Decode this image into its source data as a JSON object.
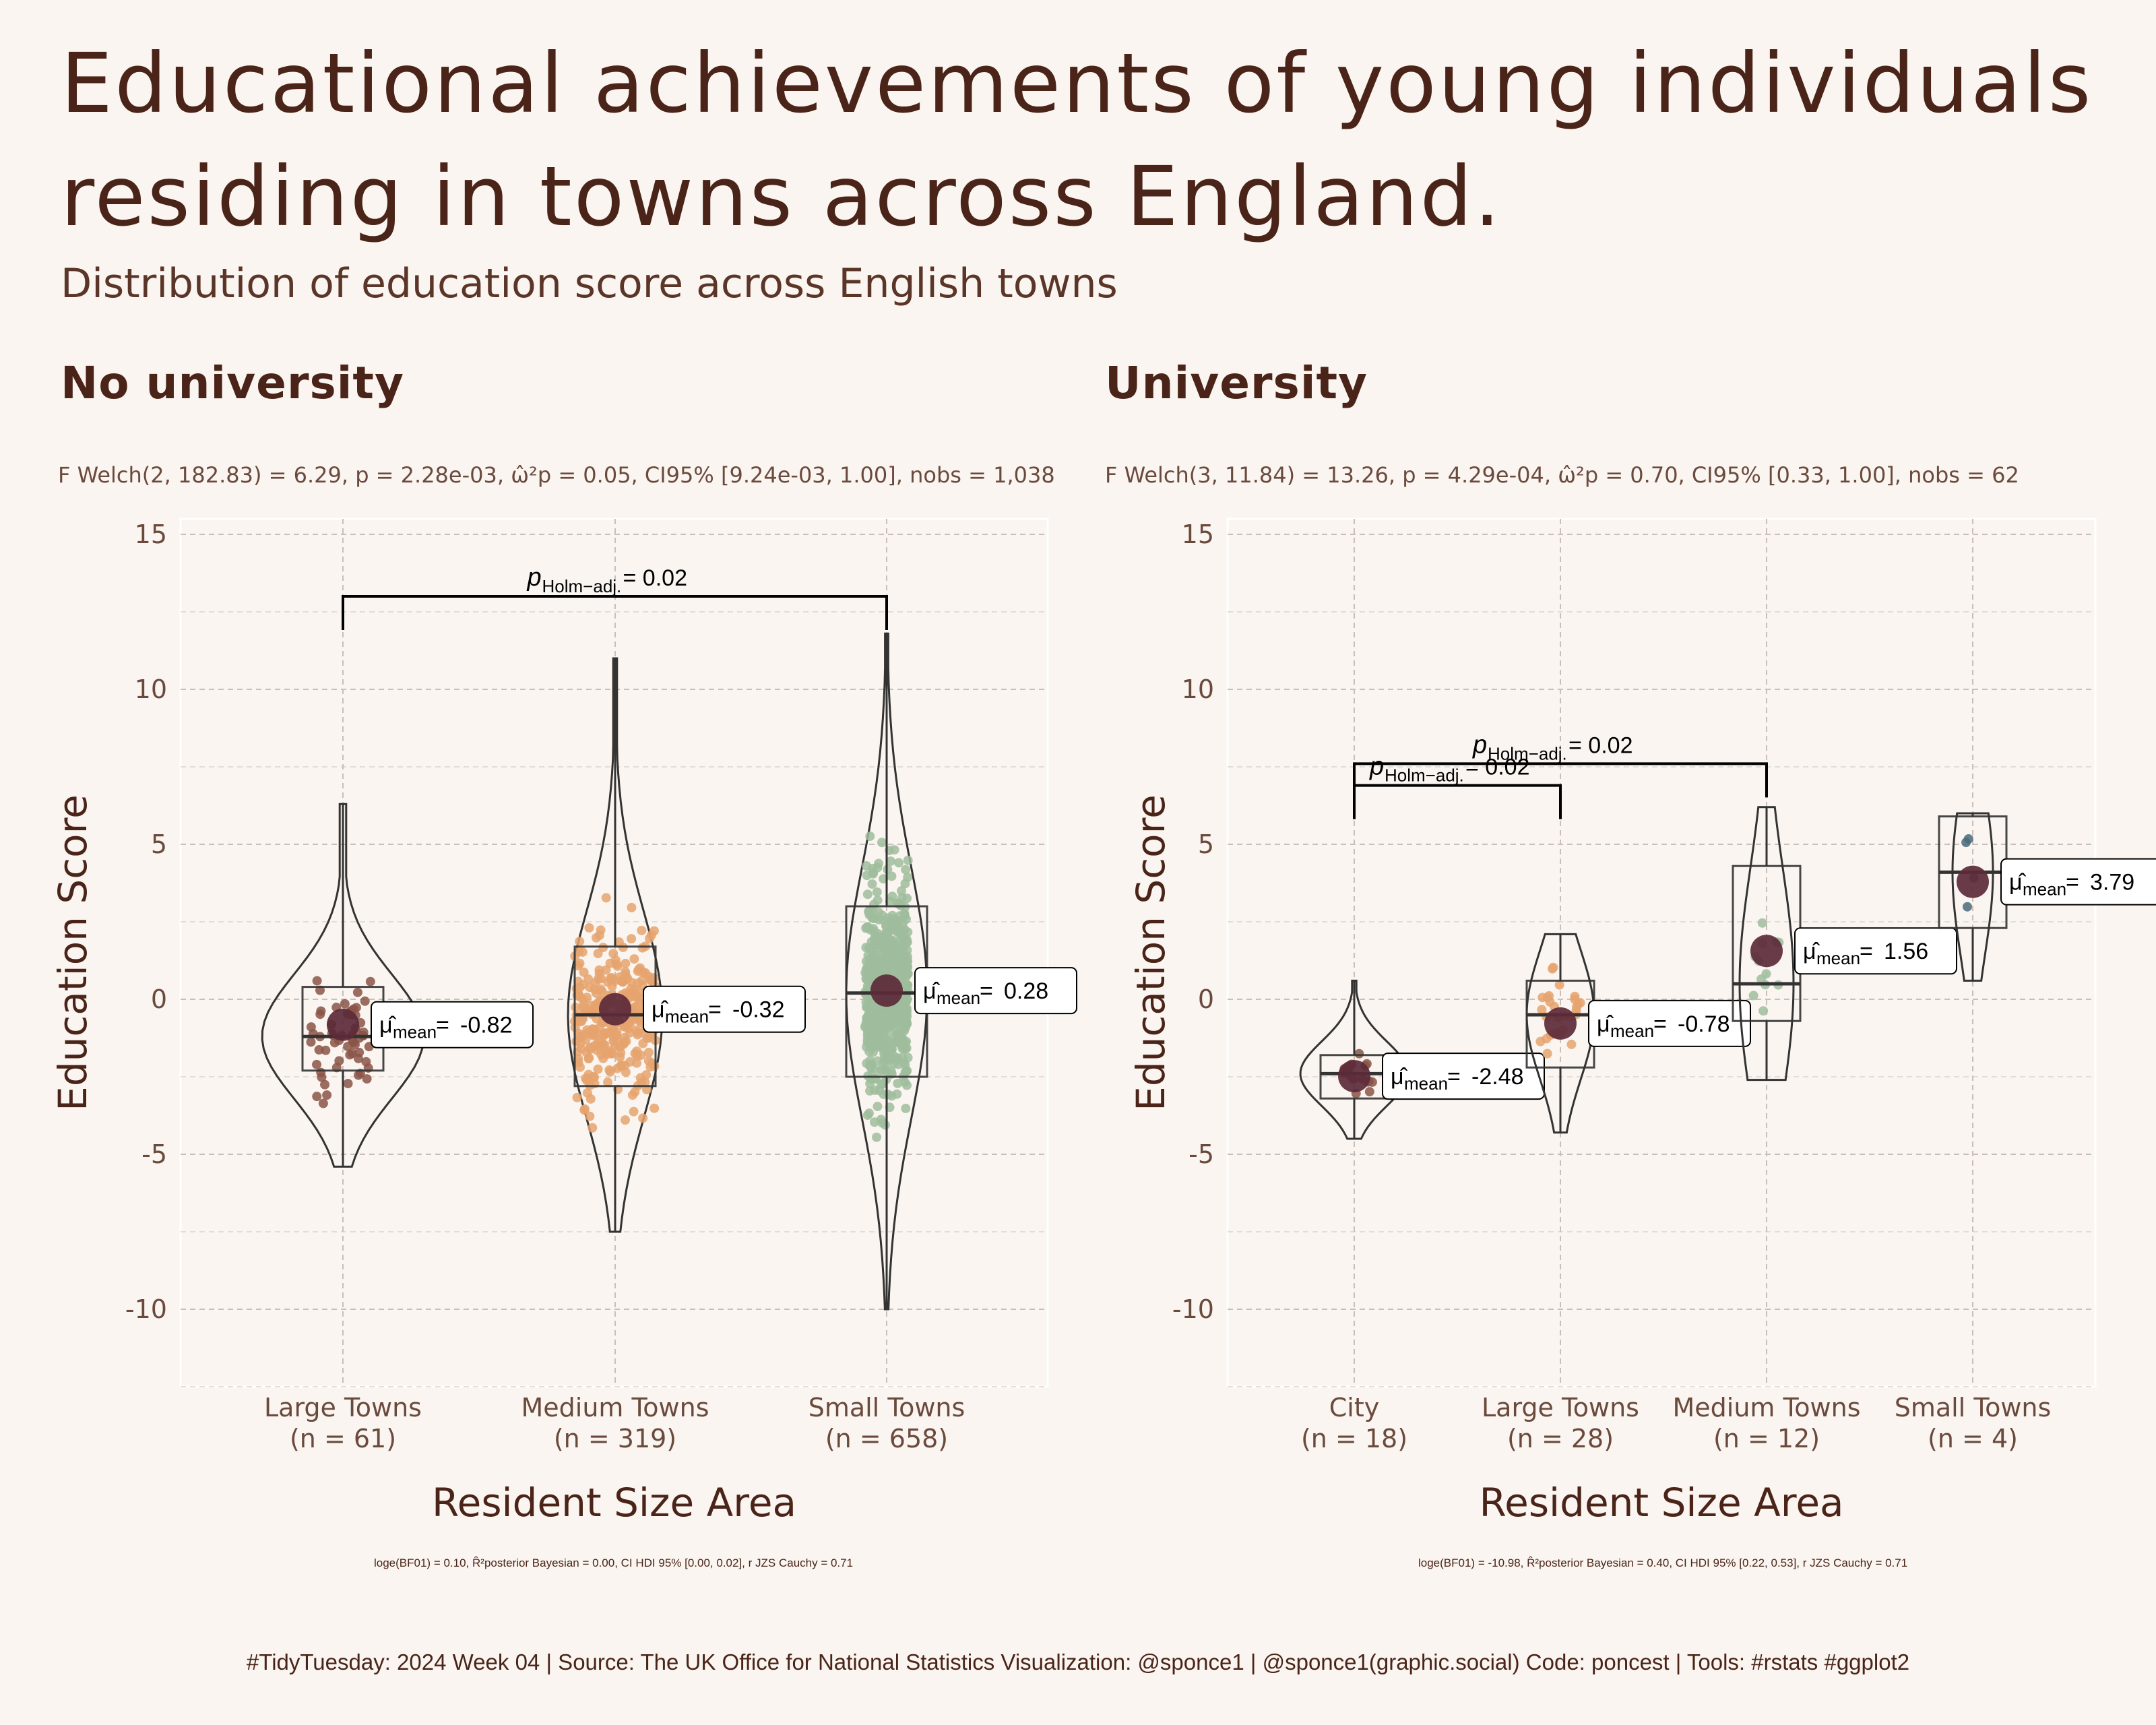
{
  "title": "Educational achievements of young individuals residing in towns across England.",
  "subtitle": "Distribution of education score across English towns",
  "caption": "#TidyTuesday: 2024 Week 04 | Source: The UK Office for National Statistics Visualization: @sponce1 | @sponce1(graphic.social) Code: poncest | Tools: #rstats #ggplot2",
  "colors": {
    "background": "#faf5f0",
    "title": "#4a2418",
    "mean_point": "#5c2a3a",
    "large_towns": "#7a4a3f",
    "medium_towns": "#e8ae7a",
    "small_towns": "#a8c4a6",
    "city": "#7a4a3f"
  },
  "chart_data": [
    {
      "type": "violin-box-scatter",
      "facet_title": "No university",
      "stats_top": "F Welch(2, 182.83) = 6.29, p = 2.28e-03, ω̂²p = 0.05, CI95% [9.24e-03, 1.00], nobs = 1,038",
      "stats_bottom": "loge(BF01) = 0.10, R̂²posterior Bayesian = 0.00, CI HDI 95% [0.00, 0.02], r JZS Cauchy = 0.71",
      "xlabel": "Resident Size Area",
      "ylabel": "Education Score",
      "ylim": [
        -12.5,
        15.5
      ],
      "yticks": [
        "15",
        "10",
        "5",
        "0",
        "-5",
        "-10"
      ],
      "groups": [
        {
          "name": "Large Towns",
          "n_label": "(n = 61)",
          "n": 61,
          "mean": -0.82,
          "mean_label": "-0.82",
          "q1": -2.3,
          "median": -1.2,
          "q3": 0.4,
          "min": -5.4,
          "max": 6.3,
          "color": "#7a4a3f",
          "dot_color": "#8a5548"
        },
        {
          "name": "Medium Towns",
          "n_label": "(n = 319)",
          "n": 319,
          "mean": -0.32,
          "mean_label": "-0.32",
          "q1": -2.8,
          "median": -0.5,
          "q3": 1.7,
          "min": -7.5,
          "max": 11.0,
          "color": "#e8ae7a",
          "dot_color": "#e5a36e"
        },
        {
          "name": "Small Towns",
          "n_label": "(n = 658)",
          "n": 658,
          "mean": 0.28,
          "mean_label": "0.28",
          "q1": -2.5,
          "median": 0.2,
          "q3": 3.0,
          "min": -10.0,
          "max": 11.8,
          "color": "#a8c4a6",
          "dot_color": "#9fbd9c"
        }
      ],
      "comparisons": [
        {
          "from": 0,
          "to": 2,
          "y": 13.0,
          "label": "0.02"
        }
      ]
    },
    {
      "type": "violin-box-scatter",
      "facet_title": "University",
      "stats_top": "F Welch(3, 11.84) = 13.26, p = 4.29e-04, ω̂²p = 0.70, CI95% [0.33, 1.00], nobs = 62",
      "stats_bottom": "loge(BF01) = -10.98, R̂²posterior Bayesian = 0.40, CI HDI 95% [0.22, 0.53], r JZS Cauchy = 0.71",
      "xlabel": "Resident Size Area",
      "ylabel": "Education Score",
      "ylim": [
        -12.5,
        15.5
      ],
      "yticks": [
        "15",
        "10",
        "5",
        "0",
        "-5",
        "-10"
      ],
      "groups": [
        {
          "name": "City",
          "n_label": "(n = 18)",
          "n": 18,
          "mean": -2.48,
          "mean_label": "-2.48",
          "q1": -3.2,
          "median": -2.4,
          "q3": -1.8,
          "min": -4.5,
          "max": 0.6,
          "color": "#7a4a3f",
          "dot_color": "#8a5548"
        },
        {
          "name": "Large Towns",
          "n_label": "(n = 28)",
          "n": 28,
          "mean": -0.78,
          "mean_label": "-0.78",
          "q1": -2.2,
          "median": -0.5,
          "q3": 0.6,
          "min": -4.3,
          "max": 2.1,
          "color": "#e8ae7a",
          "dot_color": "#e5a36e"
        },
        {
          "name": "Medium Towns",
          "n_label": "(n = 12)",
          "n": 12,
          "mean": 1.56,
          "mean_label": "1.56",
          "q1": -0.7,
          "median": 0.5,
          "q3": 4.3,
          "min": -2.6,
          "max": 6.2,
          "color": "#a8c4a6",
          "dot_color": "#9fbd9c"
        },
        {
          "name": "Small Towns",
          "n_label": "(n = 4)",
          "n": 4,
          "mean": 3.79,
          "mean_label": "3.79",
          "q1": 2.3,
          "median": 4.1,
          "q3": 5.9,
          "min": 0.6,
          "max": 6.0,
          "color": "#4a6a7a",
          "dot_color": "#4a6a7a"
        }
      ],
      "comparisons": [
        {
          "from": 0,
          "to": 1,
          "y": 6.9,
          "label": "0.02"
        },
        {
          "from": 0,
          "to": 2,
          "y": 7.6,
          "label": "0.02"
        }
      ]
    }
  ]
}
